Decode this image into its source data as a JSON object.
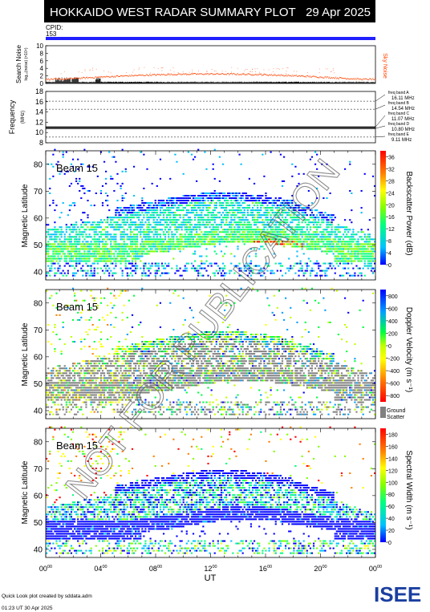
{
  "header": {
    "title": "HOKKAIDO WEST RADAR SUMMARY PLOT",
    "date": "29 Apr 2025"
  },
  "cpid": {
    "label": "CPID:",
    "value": "153"
  },
  "noise_panel": {
    "ylabel_main": "Search Noise",
    "ylabel_unit": "log₁₀(noise) (×10⁴)",
    "yticks": [
      "0",
      "2",
      "4",
      "6",
      "8",
      "10"
    ],
    "ylim": [
      0,
      10
    ],
    "sky_noise_label": "Sky Noise",
    "sky_noise_color": "#ff4400"
  },
  "freq_panel": {
    "ylabel_main": "Frequency",
    "ylabel_unit": "(MHz)",
    "yticks": [
      "8",
      "10",
      "12",
      "14",
      "16",
      "18"
    ],
    "ylim": [
      8,
      18
    ],
    "bands": [
      {
        "label": "freq band A",
        "value": "16.11 MHz",
        "mhz": 16.11
      },
      {
        "label": "freq band B",
        "value": "14.54 MHz",
        "mhz": 14.54
      },
      {
        "label": "freq band C",
        "value": "11.07 MHz",
        "mhz": 11.07
      },
      {
        "label": "freq band D",
        "value": "10.80 MHz",
        "mhz": 10.8
      },
      {
        "label": "freq band E",
        "value": "9.11 MHz",
        "mhz": 9.11
      }
    ]
  },
  "chart_data": [
    {
      "type": "heatmap",
      "panel": "power",
      "beam_label": "Beam 15",
      "ylabel": "Magnetic Latitude",
      "yticks": [
        "40",
        "50",
        "60",
        "70",
        "80"
      ],
      "ylim": [
        37,
        85
      ],
      "colorbar_label": "Backscatter Power (dB)",
      "colorbar_ticks": [
        "0",
        "4",
        "8",
        "12",
        "16",
        "20",
        "24",
        "28",
        "32",
        "36"
      ],
      "colorbar_range": [
        0,
        38
      ],
      "colors": [
        "#0000ff",
        "#00c0ff",
        "#00ff80",
        "#80ff00",
        "#ffff00",
        "#ff8000",
        "#ff0000"
      ]
    },
    {
      "type": "heatmap",
      "panel": "velocity",
      "beam_label": "Beam 15",
      "ylabel": "Magnetic Latitude",
      "yticks": [
        "40",
        "50",
        "60",
        "70",
        "80"
      ],
      "ylim": [
        37,
        85
      ],
      "colorbar_label": "Doppler Velocity (m s⁻¹)",
      "colorbar_ticks": [
        "800",
        "600",
        "400",
        "200",
        "0",
        "-200",
        "-400",
        "-600",
        "-800"
      ],
      "colorbar_range": [
        -900,
        900
      ],
      "ground_scatter_label": "Ground Scatter",
      "ground_scatter_color": "#808080",
      "colors": [
        "#0000ff",
        "#00a0ff",
        "#00ff40",
        "#c0ff00",
        "#ffff00",
        "#ff8000",
        "#ff0000"
      ]
    },
    {
      "type": "heatmap",
      "panel": "width",
      "beam_label": "Beam 15",
      "ylabel": "Magnetic Latitude",
      "yticks": [
        "40",
        "50",
        "60",
        "70",
        "80"
      ],
      "ylim": [
        37,
        85
      ],
      "colorbar_label": "Spectral Width (m s⁻¹)",
      "colorbar_ticks": [
        "0",
        "20",
        "40",
        "60",
        "80",
        "100",
        "120",
        "140",
        "160",
        "180"
      ],
      "colorbar_range": [
        0,
        190
      ],
      "colors": [
        "#0000ff",
        "#00c0ff",
        "#00ff80",
        "#80ff00",
        "#ffff00",
        "#ff8000",
        "#ff0000"
      ]
    }
  ],
  "x_axis": {
    "label": "UT",
    "ticks": [
      {
        "h": "00",
        "m": "00"
      },
      {
        "h": "04",
        "m": "00"
      },
      {
        "h": "08",
        "m": "00"
      },
      {
        "h": "12",
        "m": "00"
      },
      {
        "h": "16",
        "m": "00"
      },
      {
        "h": "20",
        "m": "00"
      },
      {
        "h": "00",
        "m": "00"
      }
    ]
  },
  "footer": {
    "created": "Quick Look plot created by sddata.adm",
    "timestamp": "01:23 UT 30 Apr 2025"
  },
  "logo": {
    "text": "ISEE",
    "color_blue": "#1a3fa0",
    "color_green": "#2fa84f"
  },
  "watermark": "NOT FOR PUBLICATION"
}
